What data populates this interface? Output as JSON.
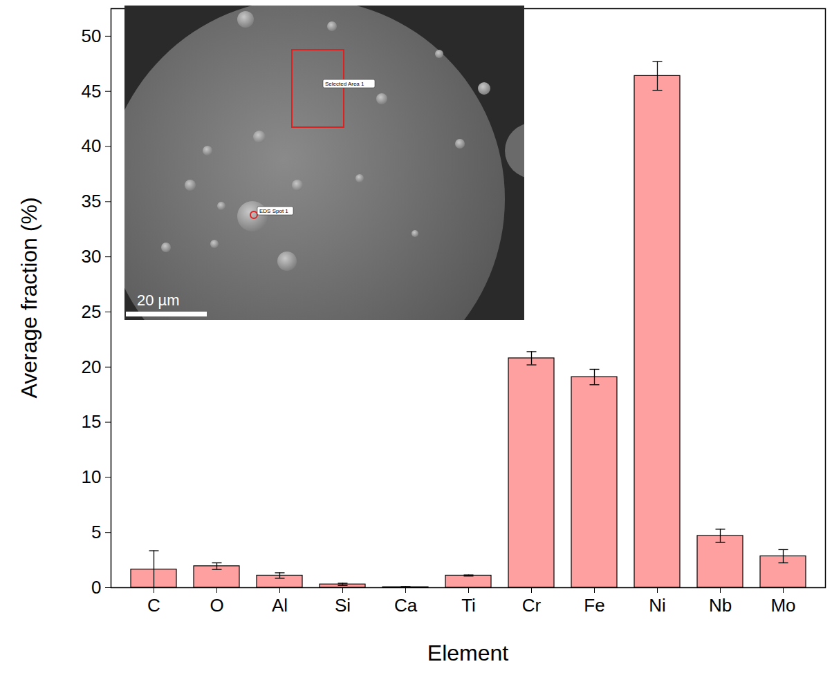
{
  "chart_data": {
    "type": "bar",
    "x_label": "Element",
    "y_label": "Average fraction (%)",
    "categories": [
      "C",
      "O",
      "Al",
      "Si",
      "Ca",
      "Ti",
      "Cr",
      "Fe",
      "Ni",
      "Nb",
      "Mo"
    ],
    "values": [
      1.65,
      1.95,
      1.1,
      0.3,
      0.05,
      1.1,
      20.8,
      19.1,
      46.4,
      4.7,
      2.85
    ],
    "errors": [
      1.7,
      0.3,
      0.25,
      0.1,
      0.05,
      0.05,
      0.6,
      0.7,
      1.3,
      0.6,
      0.6
    ],
    "color": "#ffa0a0",
    "ylim": [
      0,
      52.5
    ],
    "yticks": [
      0,
      5,
      10,
      15,
      20,
      25,
      30,
      35,
      40,
      45,
      50
    ],
    "grid": false,
    "inset": {
      "labels": [
        "Selected Area 1",
        "EDS Spot 1"
      ],
      "scale_bar": "20 µm"
    }
  }
}
